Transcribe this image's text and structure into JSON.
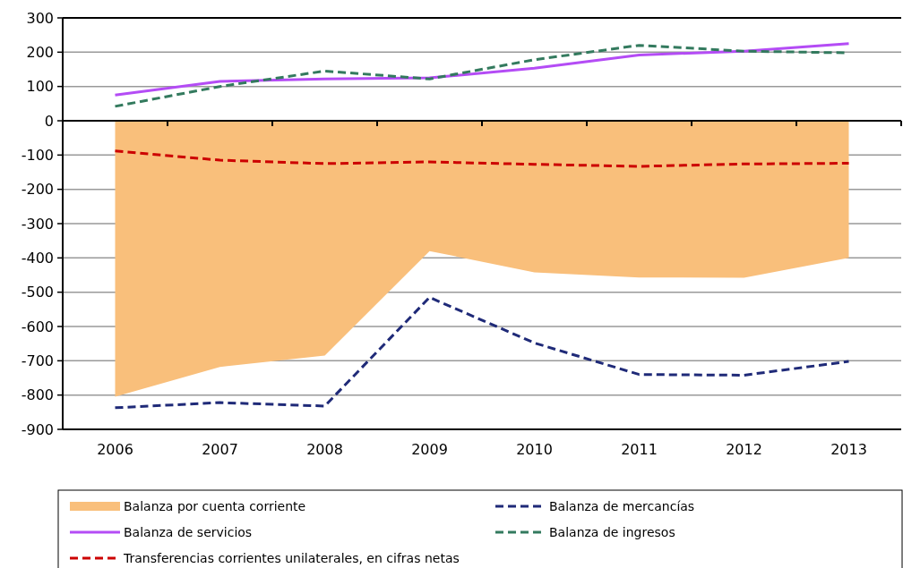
{
  "chart_data": {
    "type": "line",
    "categories": [
      "2006",
      "2007",
      "2008",
      "2009",
      "2010",
      "2011",
      "2012",
      "2013"
    ],
    "series": [
      {
        "name": "Balanza por cuenta corriente",
        "type": "area",
        "color": "#f9bf7b",
        "values": [
          -805,
          -718,
          -685,
          -380,
          -442,
          -457,
          -458,
          -400
        ]
      },
      {
        "name": "Balanza de mercancías",
        "color": "#1f2a78",
        "line_style": "dashed",
        "values": [
          -837,
          -822,
          -832,
          -515,
          -648,
          -740,
          -742,
          -702
        ]
      },
      {
        "name": "Balanza de servicios",
        "color": "#b44cf5",
        "line_style": "solid",
        "values": [
          75,
          115,
          122,
          125,
          153,
          192,
          203,
          225
        ]
      },
      {
        "name": "Balanza de ingresos",
        "color": "#337a5e",
        "line_style": "dashed",
        "values": [
          42,
          100,
          145,
          122,
          178,
          220,
          203,
          198
        ]
      },
      {
        "name": "Transferencias corrientes unilaterales, en cifras netas",
        "color": "#cc0000",
        "line_style": "dashed",
        "values": [
          -88,
          -115,
          -125,
          -120,
          -127,
          -133,
          -126,
          -124
        ]
      }
    ],
    "ylim": [
      -900,
      300
    ],
    "yticks": [
      -900,
      -800,
      -700,
      -600,
      -500,
      -400,
      -300,
      -200,
      -100,
      0,
      100,
      200,
      300
    ],
    "grid": "y",
    "legend": "bottom"
  }
}
